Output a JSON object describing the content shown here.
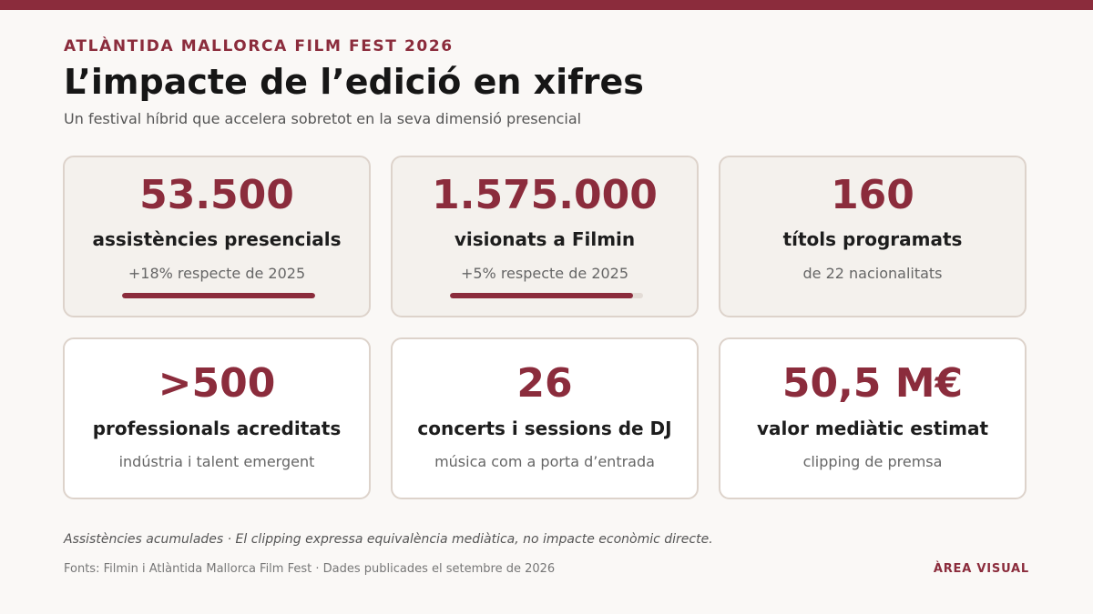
{
  "header": {
    "eyebrow": "ATLÀNTIDA MALLORCA FILM FEST 2026",
    "title": "L’impacte de l’edició en xifres",
    "subtitle": "Un festival híbrid que accelera sobretot en la seva dimensió presencial"
  },
  "cards": [
    {
      "value": "53.500",
      "label": "assistències presencials",
      "note": "+18% respecte de 2025",
      "bar_fraction": 1.0
    },
    {
      "value": "1.575.000",
      "label": "visionats a Filmin",
      "note": "+5% respecte de 2025",
      "bar_fraction": 0.95
    },
    {
      "value": "160",
      "label": "títols programats",
      "note": "de 22 nacionalitats"
    },
    {
      "value": ">500",
      "label": "professionals acreditats",
      "note": "indústria i talent emergent"
    },
    {
      "value": "26",
      "label": "concerts i sessions de DJ",
      "note": "música com a porta d’entrada"
    },
    {
      "value": "50,5 M€",
      "label": "valor mediàtic estimat",
      "note": "clipping de premsa"
    }
  ],
  "footer": {
    "footnote": "Assistències acumulades · El clipping expressa equivalència mediàtica, no impacte econòmic directe.",
    "sources": "Fonts: Filmin i Atlàntida Mallorca Film Fest · Dades publicades el setembre de 2026",
    "brand": "ÀREA VISUAL"
  },
  "colors": {
    "accent": "#8b2c3c",
    "background": "#faf8f6",
    "card_shaded": "#f4f1ed",
    "card_border": "#ddd3cb",
    "bar_track": "#e3dcd6"
  }
}
